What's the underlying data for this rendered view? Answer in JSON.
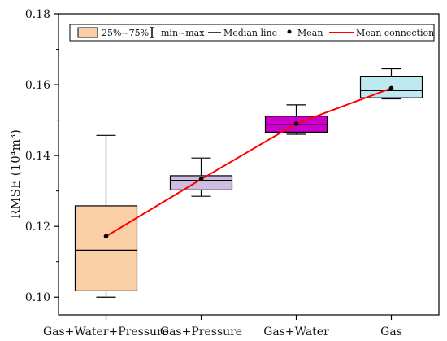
{
  "chart_data": {
    "type": "box",
    "title": "",
    "xlabel": "",
    "ylabel": "RMSE (10⁴m³)",
    "ylim": [
      0.095,
      0.18
    ],
    "yticks": [
      0.1,
      0.12,
      0.14,
      0.16,
      0.18
    ],
    "ytick_labels": [
      "0.10",
      "0.12",
      "0.14",
      "0.16",
      "0.18"
    ],
    "categories": [
      "Gas+Water+Pressure",
      "Gas+Pressure",
      "Gas+Water",
      "Gas"
    ],
    "boxes": [
      {
        "category": "Gas+Water+Pressure",
        "min": 0.1,
        "q1": 0.1018,
        "median": 0.1133,
        "q3": 0.1258,
        "max": 0.1457,
        "mean": 0.1172,
        "fill": "#fbcfa5"
      },
      {
        "category": "Gas+Pressure",
        "min": 0.1285,
        "q1": 0.1303,
        "median": 0.133,
        "q3": 0.1343,
        "max": 0.1393,
        "mean": 0.1333,
        "fill": "#cdbde0"
      },
      {
        "category": "Gas+Water",
        "min": 0.146,
        "q1": 0.1466,
        "median": 0.1487,
        "q3": 0.1511,
        "max": 0.1543,
        "mean": 0.149,
        "fill": "#cc00cc"
      },
      {
        "category": "Gas",
        "min": 0.156,
        "q1": 0.1563,
        "median": 0.1583,
        "q3": 0.1624,
        "max": 0.1645,
        "mean": 0.159,
        "fill": "#bfe9f0"
      }
    ],
    "mean_line_color": "#ff0000",
    "grid": false,
    "legend_position": "top",
    "legend": {
      "range_label": "25%~75%",
      "whisker_label": "min~max",
      "median_label": "Median line",
      "mean_label": "Mean",
      "connection_label": "Mean connection"
    }
  }
}
